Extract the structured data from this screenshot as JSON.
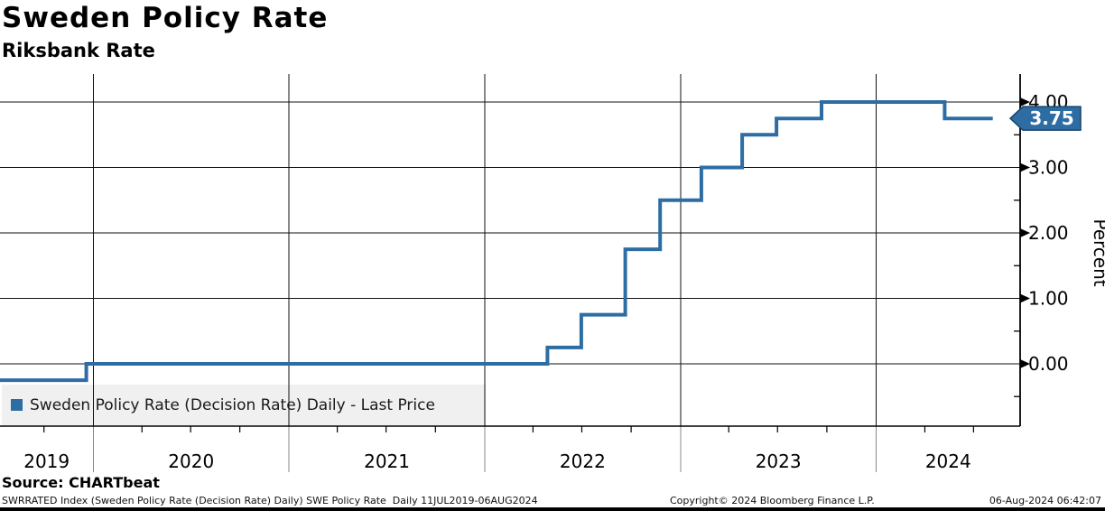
{
  "header": {
    "title": "Sweden Policy Rate",
    "subtitle": "Riksbank Rate"
  },
  "legend": {
    "label": "Sweden Policy Rate (Decision Rate) Daily - Last Price"
  },
  "source": {
    "label": "Source: CHARTbeat"
  },
  "footer": {
    "left": "SWRRATED Index (Sweden Policy Rate (Decision Rate) Daily) SWE Policy Rate  Daily 11JUL2019-06AUG2024",
    "center": "Copyright© 2024 Bloomberg Finance L.P.",
    "right": "06-Aug-2024 06:42:07"
  },
  "chart_data": {
    "type": "line",
    "line_style": "step-after",
    "title": "Sweden Policy Rate",
    "subtitle": "Riksbank Rate",
    "ylabel": "Percent",
    "xlabel": "",
    "grid": true,
    "legend_position": "bottom-left",
    "x_range": [
      "2019-07-11",
      "2024-08-06"
    ],
    "ylim": [
      -0.95,
      4.43
    ],
    "line_color": "#2e6da4",
    "grid_color": "#111111",
    "last_price_label": "3.75",
    "badge": {
      "fill": "#2e6da4",
      "border": "#16436b",
      "text_color": "#ffffff"
    },
    "y_ticks": [
      {
        "v": 4,
        "label": "4.00"
      },
      {
        "v": 3,
        "label": "3.00"
      },
      {
        "v": 2,
        "label": "2.00"
      },
      {
        "v": 1,
        "label": "1.00"
      },
      {
        "v": 0,
        "label": "0.00"
      }
    ],
    "y_minor_ticks": [
      3.5,
      2.5,
      1.5,
      0.5,
      -0.5
    ],
    "x_year_gridlines": [
      2020,
      2021,
      2022,
      2023,
      2024
    ],
    "x_year_labels": [
      "2019",
      "2020",
      "2021",
      "2022",
      "2023",
      "2024"
    ],
    "series": [
      {
        "name": "Sweden Policy Rate (Decision Rate) Daily - Last Price",
        "color": "#2e6da4",
        "points": [
          {
            "date": "2019-07-11",
            "value": -0.25
          },
          {
            "date": "2019-12-19",
            "value": 0.0
          },
          {
            "date": "2022-04-28",
            "value": 0.25
          },
          {
            "date": "2022-06-30",
            "value": 0.75
          },
          {
            "date": "2022-09-20",
            "value": 1.75
          },
          {
            "date": "2022-11-24",
            "value": 2.5
          },
          {
            "date": "2023-02-09",
            "value": 3.0
          },
          {
            "date": "2023-04-26",
            "value": 3.5
          },
          {
            "date": "2023-06-29",
            "value": 3.75
          },
          {
            "date": "2023-09-21",
            "value": 4.0
          },
          {
            "date": "2024-05-08",
            "value": 3.75
          }
        ],
        "end_date": "2024-08-06",
        "last_value": 3.75
      }
    ]
  }
}
